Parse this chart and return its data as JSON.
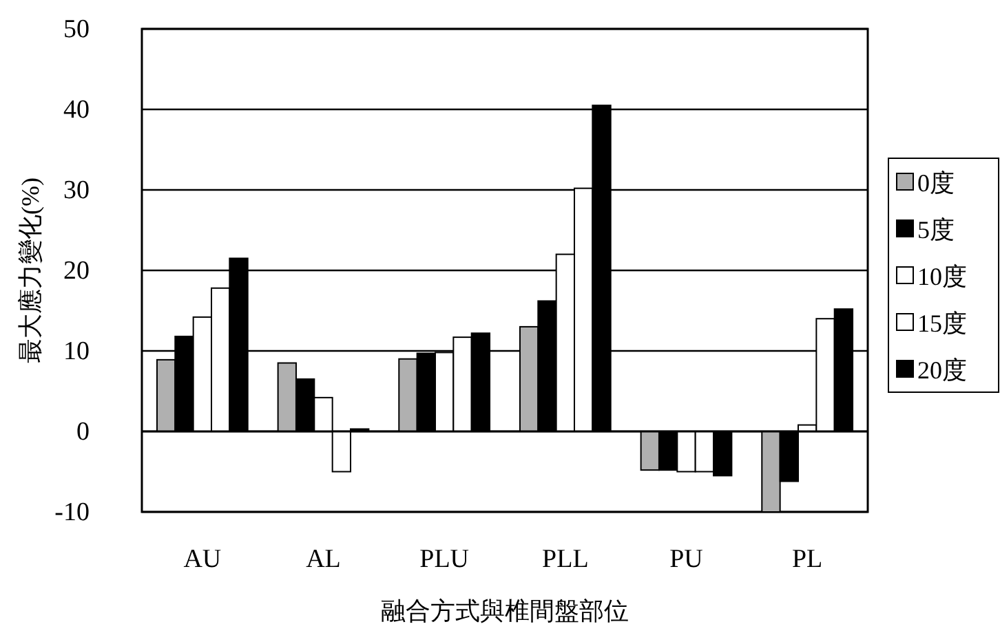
{
  "chart_data": {
    "type": "bar",
    "xlabel": "融合方式與椎間盤部位",
    "ylabel": "最大應力變化(%)",
    "categories": [
      "AU",
      "AL",
      "PLU",
      "PLL",
      "PU",
      "PL"
    ],
    "series": [
      {
        "name": "0度",
        "color": "#b0b0b0",
        "values": [
          8.9,
          8.5,
          9.0,
          13.0,
          -4.8,
          -10.0
        ]
      },
      {
        "name": "5度",
        "color": "#000000",
        "values": [
          11.8,
          6.5,
          9.7,
          16.2,
          -4.8,
          -6.2
        ]
      },
      {
        "name": "10度",
        "color": "#ffffff",
        "values": [
          14.2,
          4.2,
          9.8,
          22.0,
          -5.0,
          0.8
        ]
      },
      {
        "name": "15度",
        "color": "#ffffff",
        "values": [
          17.8,
          -5.0,
          11.7,
          30.2,
          -5.0,
          14.0
        ]
      },
      {
        "name": "20度",
        "color": "#000000",
        "values": [
          21.5,
          0.3,
          12.2,
          40.5,
          -5.5,
          15.2
        ]
      }
    ],
    "ylim": [
      -10,
      50
    ],
    "yticks": [
      -10,
      0,
      10,
      20,
      30,
      40,
      50
    ],
    "grid": "y",
    "legend": "right"
  }
}
